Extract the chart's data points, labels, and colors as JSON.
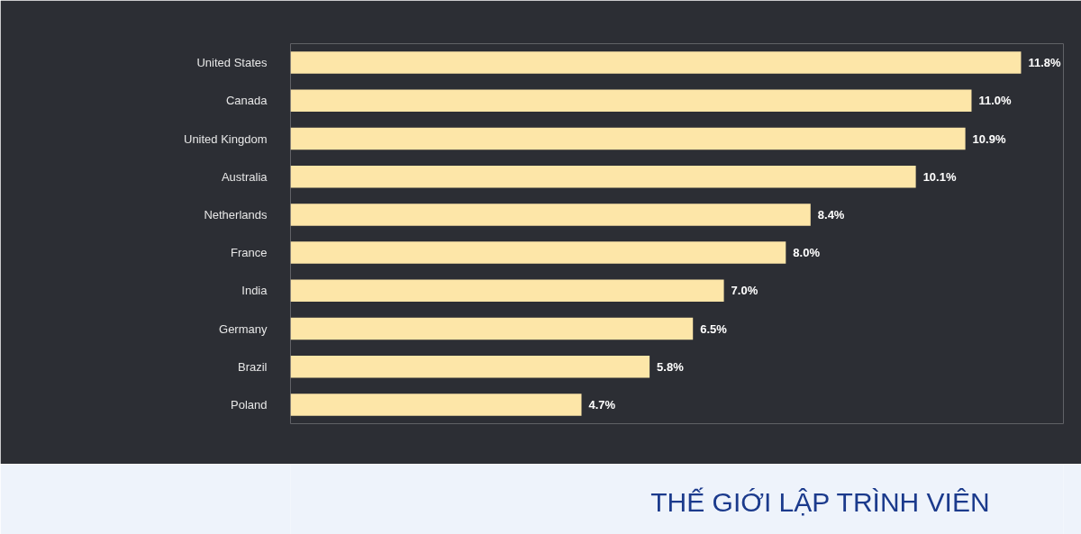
{
  "chart_data": {
    "type": "bar",
    "orientation": "horizontal",
    "categories": [
      "United States",
      "Canada",
      "United Kingdom",
      "Australia",
      "Netherlands",
      "France",
      "India",
      "Germany",
      "Brazil",
      "Poland"
    ],
    "values": [
      11.8,
      11.0,
      10.9,
      10.1,
      8.4,
      8.0,
      7.0,
      6.5,
      5.8,
      4.7
    ],
    "value_labels": [
      "11.8%",
      "11.0%",
      "10.9%",
      "10.1%",
      "8.4%",
      "8.0%",
      "7.0%",
      "6.5%",
      "5.8%",
      "4.7%"
    ],
    "color": "#fde6a8",
    "tick_labels": "y",
    "annotations": [
      "THẾ GIỚI LẬP TRÌNH VIÊN"
    ]
  }
}
